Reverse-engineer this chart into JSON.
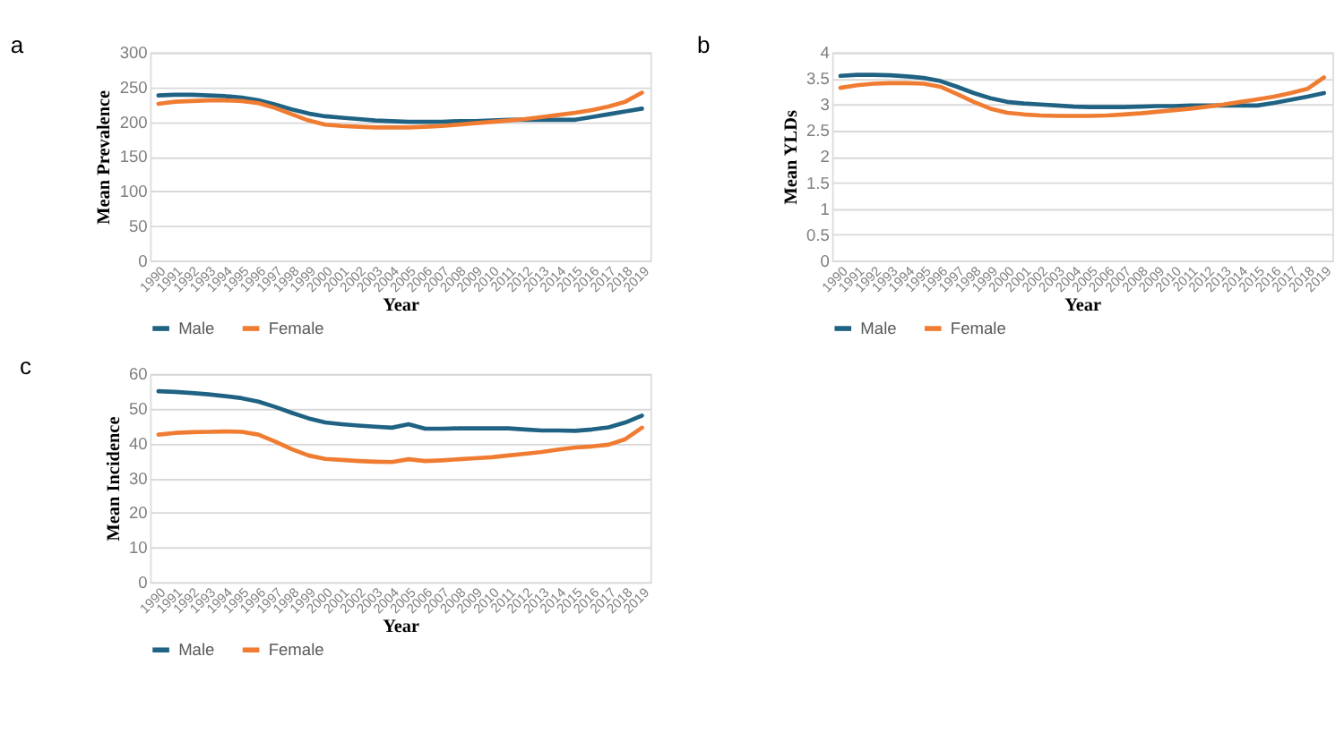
{
  "chart_data": [
    {
      "type": "line",
      "title": "a",
      "xlabel": "Year",
      "ylabel": "Mean Prevalence",
      "categories": [
        "1990",
        "1991",
        "1992",
        "1993",
        "1994",
        "1995",
        "1996",
        "1997",
        "1998",
        "1999",
        "2000",
        "2001",
        "2002",
        "2003",
        "2004",
        "2005",
        "2006",
        "2007",
        "2008",
        "2009",
        "2010",
        "2011",
        "2012",
        "2013",
        "2014",
        "2015",
        "2016",
        "2017",
        "2018",
        "2019"
      ],
      "ylim": [
        0,
        300
      ],
      "yticks": [
        0,
        50,
        100,
        150,
        200,
        250,
        300
      ],
      "grid": "y",
      "legend": "bottom",
      "marker": "none",
      "line_style": "solid",
      "series": [
        {
          "name": "Male",
          "color": "#1f6283",
          "values": [
            238,
            239,
            239,
            238,
            237,
            235,
            231,
            225,
            218,
            212,
            208,
            206,
            204,
            202,
            201,
            200,
            200,
            200,
            201,
            201,
            202,
            203,
            203,
            203,
            203,
            203,
            207,
            211,
            215,
            219
          ]
        },
        {
          "name": "Female",
          "color": "#f07c32",
          "values": [
            226,
            229,
            230,
            231,
            231,
            230,
            227,
            220,
            211,
            202,
            196,
            194,
            193,
            192,
            192,
            192,
            193,
            194,
            196,
            198,
            200,
            202,
            204,
            207,
            210,
            213,
            217,
            222,
            229,
            242
          ]
        }
      ]
    },
    {
      "type": "line",
      "title": "b",
      "xlabel": "Year",
      "ylabel": "Mean YLDs",
      "categories": [
        "1990",
        "1991",
        "1992",
        "1993",
        "1994",
        "1995",
        "1996",
        "1997",
        "1998",
        "1999",
        "2000",
        "2001",
        "2002",
        "2003",
        "2004",
        "2005",
        "2006",
        "2007",
        "2008",
        "2009",
        "2010",
        "2011",
        "2012",
        "2013",
        "2014",
        "2015",
        "2016",
        "2017",
        "2018",
        "2019"
      ],
      "ylim": [
        0,
        4
      ],
      "yticks": [
        0,
        0.5,
        1,
        1.5,
        2,
        2.5,
        3,
        3.5,
        4
      ],
      "grid": "y",
      "legend": "bottom",
      "marker": "none",
      "line_style": "solid",
      "series": [
        {
          "name": "Male",
          "color": "#1f6283",
          "values": [
            3.55,
            3.57,
            3.57,
            3.56,
            3.54,
            3.51,
            3.45,
            3.34,
            3.22,
            3.12,
            3.05,
            3.02,
            3.0,
            2.98,
            2.96,
            2.95,
            2.95,
            2.95,
            2.96,
            2.97,
            2.97,
            2.98,
            2.98,
            2.98,
            2.98,
            2.98,
            3.03,
            3.09,
            3.15,
            3.22
          ]
        },
        {
          "name": "Female",
          "color": "#f07c32",
          "values": [
            3.32,
            3.37,
            3.4,
            3.41,
            3.41,
            3.4,
            3.34,
            3.2,
            3.05,
            2.92,
            2.84,
            2.81,
            2.79,
            2.78,
            2.78,
            2.78,
            2.79,
            2.81,
            2.83,
            2.86,
            2.89,
            2.92,
            2.96,
            3.0,
            3.05,
            3.1,
            3.15,
            3.22,
            3.3,
            3.52
          ]
        }
      ]
    },
    {
      "type": "line",
      "title": "c",
      "xlabel": "Year",
      "ylabel": "Mean Incidence",
      "categories": [
        "1990",
        "1991",
        "1992",
        "1993",
        "1994",
        "1995",
        "1996",
        "1997",
        "1998",
        "1999",
        "2000",
        "2001",
        "2002",
        "2003",
        "2004",
        "2005",
        "2006",
        "2007",
        "2008",
        "2009",
        "2010",
        "2011",
        "2012",
        "2013",
        "2014",
        "2015",
        "2016",
        "2017",
        "2018",
        "2019"
      ],
      "ylim": [
        0,
        60
      ],
      "yticks": [
        0,
        10,
        20,
        30,
        40,
        50,
        60
      ],
      "grid": "y",
      "legend": "bottom",
      "marker": "none",
      "line_style": "solid",
      "series": [
        {
          "name": "Male",
          "color": "#1f6283",
          "values": [
            55,
            54.8,
            54.5,
            54.1,
            53.6,
            53,
            52,
            50.5,
            48.8,
            47.2,
            46,
            45.5,
            45.1,
            44.8,
            44.5,
            45.5,
            44.2,
            44.2,
            44.3,
            44.3,
            44.3,
            44.3,
            44,
            43.7,
            43.7,
            43.6,
            44,
            44.6,
            46,
            48
          ]
        },
        {
          "name": "Female",
          "color": "#f07c32",
          "values": [
            42.5,
            43,
            43.2,
            43.3,
            43.4,
            43.3,
            42.5,
            40.5,
            38.3,
            36.5,
            35.5,
            35.2,
            34.9,
            34.7,
            34.6,
            35.4,
            34.9,
            35.1,
            35.4,
            35.7,
            36,
            36.5,
            37,
            37.5,
            38.2,
            38.8,
            39.1,
            39.6,
            41.2,
            44.5
          ]
        }
      ]
    }
  ]
}
